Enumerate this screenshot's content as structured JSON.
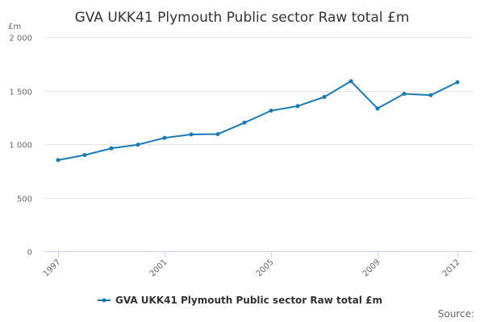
{
  "colors": {
    "series": "#1a7ab5"
  },
  "chart_data": {
    "type": "line",
    "title": "GVA UKK41 Plymouth Public sector Raw total £m",
    "unit_label": "£m",
    "xlabel": "",
    "ylabel": "",
    "ylim": [
      0,
      2000
    ],
    "yticks": [
      0,
      500,
      1000,
      1500,
      2000
    ],
    "ytick_labels": [
      "0",
      "500",
      "1 000",
      "1 500",
      "2 000"
    ],
    "xlim": [
      1997,
      2012
    ],
    "xticks": [
      1997,
      2001,
      2005,
      2009,
      2012
    ],
    "xtick_labels": [
      "1997",
      "2001",
      "2005",
      "2009",
      "2012"
    ],
    "grid": true,
    "legend_position": "bottom-center",
    "x": [
      1997,
      1998,
      1999,
      2000,
      2001,
      2002,
      2003,
      2004,
      2005,
      2006,
      2007,
      2008,
      2009,
      2010,
      2011,
      2012
    ],
    "series": [
      {
        "name": "GVA UKK41 Plymouth Public sector Raw total £m",
        "values": [
          850,
          898,
          960,
          995,
          1058,
          1090,
          1093,
          1200,
          1312,
          1355,
          1440,
          1587,
          1332,
          1470,
          1457,
          1578
        ]
      }
    ]
  },
  "source_label": "Source:"
}
